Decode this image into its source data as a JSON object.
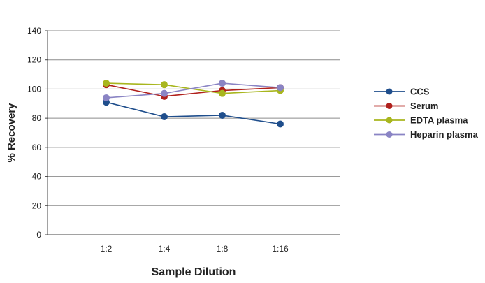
{
  "chart_data": {
    "type": "line",
    "title": "",
    "xlabel": "Sample Dilution",
    "ylabel": "% Recovery",
    "categories": [
      "1:2",
      "1:4",
      "1:8",
      "1:16"
    ],
    "ylim": [
      0,
      140
    ],
    "yticks": [
      "0",
      "20",
      "40",
      "60",
      "80",
      "100",
      "120",
      "140"
    ],
    "grid": true,
    "legend_position": "right",
    "series": [
      {
        "name": "CCS",
        "color": "#1f4e8c",
        "values": [
          91,
          81,
          82,
          76
        ]
      },
      {
        "name": "Serum",
        "color": "#b0201c",
        "values": [
          103,
          95,
          99,
          101
        ]
      },
      {
        "name": "EDTA plasma",
        "color": "#a8b61e",
        "values": [
          104,
          103,
          97,
          99
        ]
      },
      {
        "name": "Heparin plasma",
        "color": "#8a84c4",
        "values": [
          94,
          97,
          104,
          101
        ]
      }
    ]
  }
}
